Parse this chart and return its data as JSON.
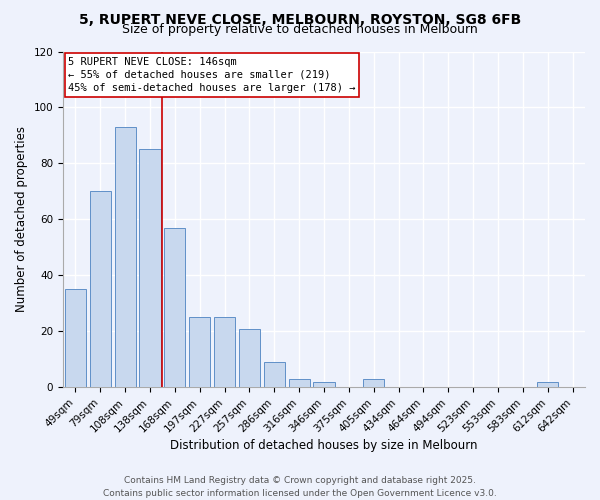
{
  "title": "5, RUPERT NEVE CLOSE, MELBOURN, ROYSTON, SG8 6FB",
  "subtitle": "Size of property relative to detached houses in Melbourn",
  "xlabel": "Distribution of detached houses by size in Melbourn",
  "ylabel": "Number of detached properties",
  "bar_labels": [
    "49sqm",
    "79sqm",
    "108sqm",
    "138sqm",
    "168sqm",
    "197sqm",
    "227sqm",
    "257sqm",
    "286sqm",
    "316sqm",
    "346sqm",
    "375sqm",
    "405sqm",
    "434sqm",
    "464sqm",
    "494sqm",
    "523sqm",
    "553sqm",
    "583sqm",
    "612sqm",
    "642sqm"
  ],
  "bar_values": [
    35,
    70,
    93,
    85,
    57,
    25,
    25,
    21,
    9,
    3,
    2,
    0,
    3,
    0,
    0,
    0,
    0,
    0,
    0,
    2,
    0
  ],
  "bar_color": "#c8d8ee",
  "bar_edgecolor": "#6090c8",
  "vline_x": 3.5,
  "vline_color": "#cc0000",
  "annotation_title": "5 RUPERT NEVE CLOSE: 146sqm",
  "annotation_line1": "← 55% of detached houses are smaller (219)",
  "annotation_line2": "45% of semi-detached houses are larger (178) →",
  "annotation_box_facecolor": "#ffffff",
  "annotation_box_edgecolor": "#cc0000",
  "ylim": [
    0,
    120
  ],
  "yticks": [
    0,
    20,
    40,
    60,
    80,
    100,
    120
  ],
  "footer1": "Contains HM Land Registry data © Crown copyright and database right 2025.",
  "footer2": "Contains public sector information licensed under the Open Government Licence v3.0.",
  "bg_color": "#eef2fc",
  "plot_bg_color": "#eef2fc",
  "grid_color": "#ffffff",
  "title_fontsize": 10,
  "subtitle_fontsize": 9,
  "axis_label_fontsize": 8.5,
  "tick_fontsize": 7.5,
  "annotation_fontsize": 7.5,
  "footer_fontsize": 6.5
}
